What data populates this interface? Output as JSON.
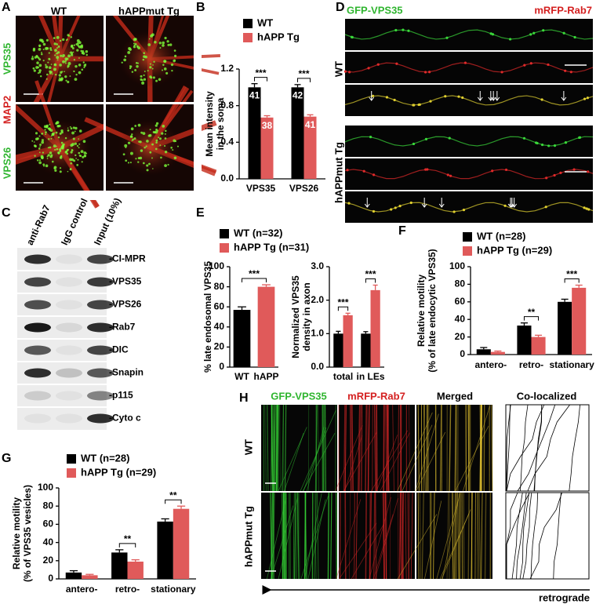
{
  "panel_labels": [
    "A",
    "B",
    "C",
    "D",
    "E",
    "F",
    "G",
    "H"
  ],
  "panel_a": {
    "columns": [
      "WT",
      "hAPPmut Tg"
    ],
    "row_labels": [
      "VPS35",
      "MAP2",
      "VPS26"
    ]
  },
  "panel_c": {
    "lanes": [
      "anti-Rab7",
      "IgG control",
      "Input (10%)"
    ],
    "bands": [
      "-CI-MPR",
      "-VPS35",
      "-VPS26",
      "-Rab7",
      "-DIC",
      "-Snapin",
      "-p115",
      "-Cyto c"
    ]
  },
  "panel_d": {
    "channels": [
      "GFP-VPS35",
      "mRFP-Rab7"
    ],
    "rows": [
      "WT",
      "hAPPmut Tg"
    ]
  },
  "panel_h": {
    "columns": [
      "GFP-VPS35",
      "mRFP-Rab7",
      "Merged",
      "Co-localized"
    ],
    "rows": [
      "WT",
      "hAPPmut Tg"
    ],
    "direction": "retrograde"
  },
  "chart_data": [
    {
      "type": "bar",
      "y_label": [
        "Mean intensity",
        "in the soma"
      ],
      "categories": [
        "VPS35",
        "VPS26"
      ],
      "series": [
        {
          "name": "WT",
          "color": "#000000",
          "values": [
            1.0,
            1.0
          ],
          "errors": [
            0.04,
            0.03
          ],
          "n_labels": [
            "41",
            "42"
          ]
        },
        {
          "name": "hAPP Tg",
          "color": "#e05a5a",
          "values": [
            0.67,
            0.68
          ],
          "errors": [
            0.02,
            0.02
          ],
          "n_labels": [
            "38",
            "41"
          ]
        }
      ],
      "significance": [
        "***",
        "***"
      ],
      "ylim": [
        0,
        1.2
      ],
      "yticks": [
        {
          "value": 0,
          "label": "0.0"
        },
        0.4,
        0.8,
        1.2
      ]
    },
    {
      "type": "bar",
      "y_label": [
        "% late endosomal VPS35"
      ],
      "categories": [
        "WT",
        "hAPP"
      ],
      "values": [
        57,
        80
      ],
      "errors": [
        3,
        2
      ],
      "colors": [
        "#000000",
        "#e05a5a"
      ],
      "significance": [
        "***"
      ],
      "ylim": [
        0,
        100
      ],
      "yticks": [
        0,
        20,
        40,
        60,
        80,
        100
      ]
    },
    {
      "type": "bar",
      "y_label": [
        "Normalized VPS35",
        "density in axon"
      ],
      "categories": [
        "total",
        "in LEs"
      ],
      "series": [
        {
          "name": "WT (n=32)",
          "color": "#000000",
          "values": [
            1.0,
            1.0
          ],
          "errors": [
            0.07,
            0.06
          ]
        },
        {
          "name": "hAPP Tg (n=31)",
          "color": "#e05a5a",
          "values": [
            1.55,
            2.3
          ],
          "errors": [
            0.06,
            0.15
          ]
        }
      ],
      "significance": [
        "***",
        "***"
      ],
      "ylim": [
        0,
        3
      ],
      "yticks": [
        {
          "value": 0,
          "label": "0.0"
        },
        {
          "value": 1,
          "label": "1.0"
        },
        {
          "value": 2,
          "label": "2.0"
        },
        {
          "value": 3,
          "label": "3.0"
        }
      ]
    },
    {
      "type": "bar",
      "y_label": [
        "Relative motility",
        "(% of late endocytic VPS35)"
      ],
      "categories": [
        "antero-",
        "retro-",
        "stationary"
      ],
      "series": [
        {
          "name": "WT (n=28)",
          "color": "#000000",
          "values": [
            6,
            33,
            60
          ],
          "errors": [
            2,
            3,
            3
          ]
        },
        {
          "name": "hAPP Tg (n=29)",
          "color": "#e05a5a",
          "values": [
            3,
            20,
            76
          ],
          "errors": [
            1,
            2,
            3
          ]
        }
      ],
      "significance": [
        null,
        "**",
        "***"
      ],
      "ylim": [
        0,
        100
      ],
      "yticks": [
        0,
        20,
        40,
        60,
        80,
        100
      ]
    },
    {
      "type": "bar",
      "y_label": [
        "Relative motility",
        "(% of VPS35 vesicles)"
      ],
      "categories": [
        "antero-",
        "retro-",
        "stationary"
      ],
      "series": [
        {
          "name": "WT (n=28)",
          "color": "#000000",
          "values": [
            7,
            29,
            63
          ],
          "errors": [
            2,
            3,
            3
          ]
        },
        {
          "name": "hAPP Tg (n=29)",
          "color": "#e05a5a",
          "values": [
            4,
            19,
            77
          ],
          "errors": [
            1,
            2,
            3
          ]
        }
      ],
      "significance": [
        null,
        "**",
        "**"
      ],
      "ylim": [
        0,
        100
      ],
      "yticks": [
        0,
        20,
        40,
        60,
        80,
        100
      ]
    }
  ]
}
